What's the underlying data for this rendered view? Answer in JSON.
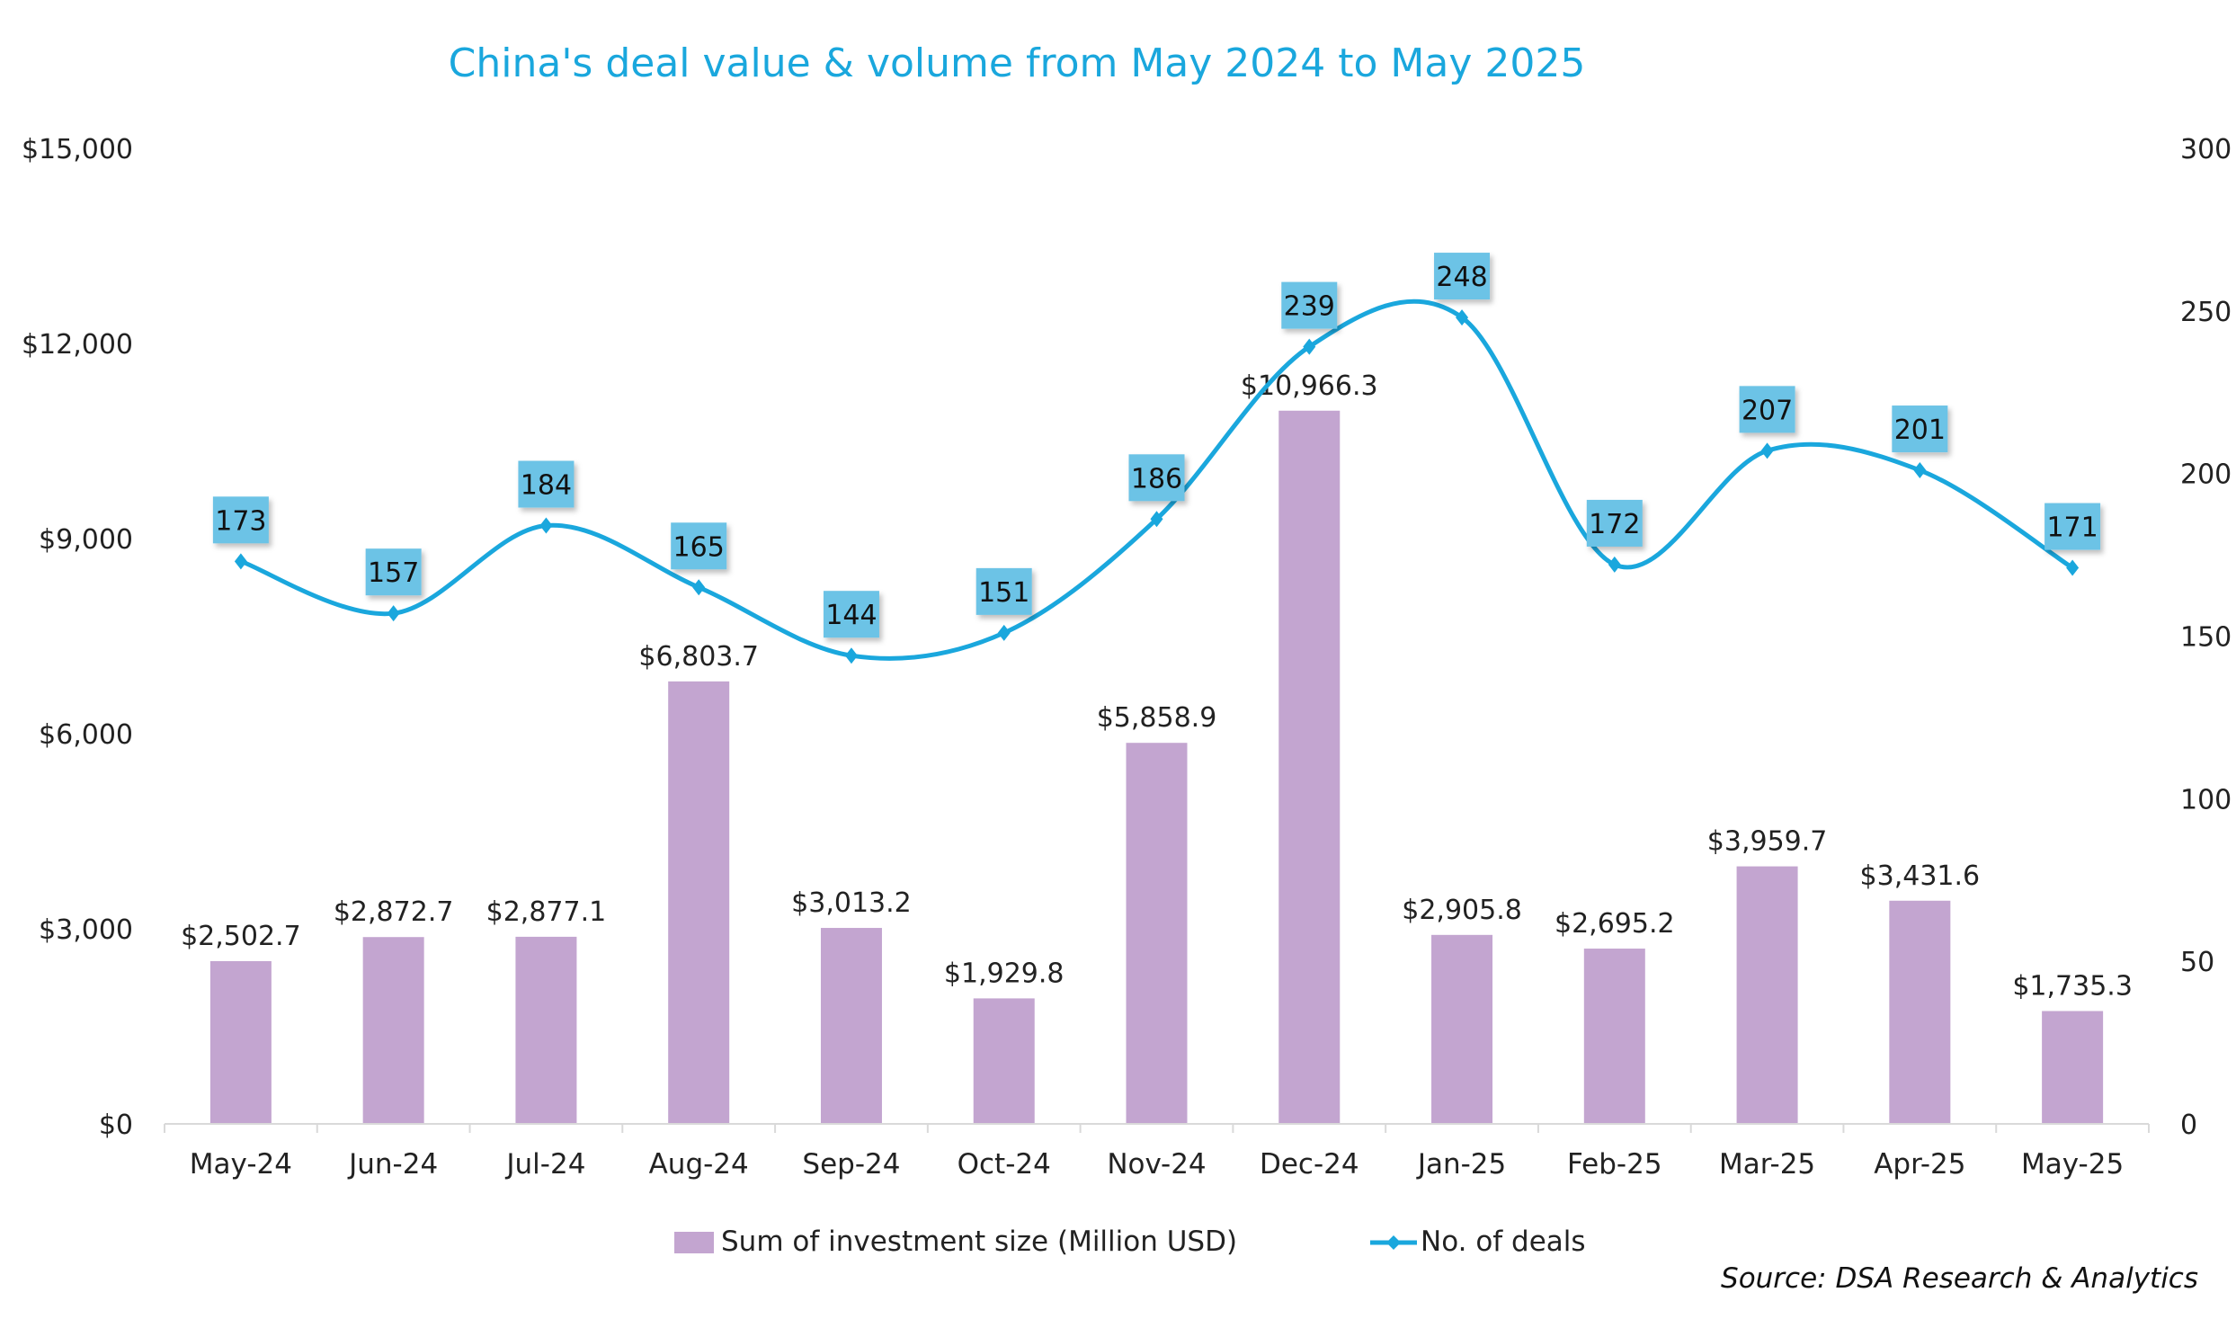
{
  "chart_data": {
    "type": "bar",
    "combo": "bar+line (dual axis)",
    "title": "China's deal value & volume from May 2024 to May 2025",
    "categories": [
      "May-24",
      "Jun-24",
      "Jul-24",
      "Aug-24",
      "Sep-24",
      "Oct-24",
      "Nov-24",
      "Dec-24",
      "Jan-25",
      "Feb-25",
      "Mar-25",
      "Apr-25",
      "May-25"
    ],
    "series": [
      {
        "name": "Sum of investment size (Million USD)",
        "type": "bar",
        "axis": "left",
        "color": "#c3a5d0",
        "values": [
          2502.7,
          2872.7,
          2877.1,
          6803.7,
          3013.2,
          1929.8,
          5858.9,
          10966.3,
          2905.8,
          2695.2,
          3959.7,
          3431.6,
          1735.3
        ],
        "labels": [
          "$2,502.7",
          "$2,872.7",
          "$2,877.1",
          "$6,803.7",
          "$3,013.2",
          "$1,929.8",
          "$5,858.9",
          "$10,966.3",
          "$2,905.8",
          "$2,695.2",
          "$3,959.7",
          "$3,431.6",
          "$1,735.3"
        ]
      },
      {
        "name": "No. of deals",
        "type": "line",
        "smooth": true,
        "marker": "diamond",
        "axis": "right",
        "color": "#1aa7dd",
        "label_box_color": "#6cc3e6",
        "values": [
          173,
          157,
          184,
          165,
          144,
          151,
          186,
          239,
          248,
          172,
          207,
          201,
          171
        ],
        "labels": [
          "173",
          "157",
          "184",
          "165",
          "144",
          "151",
          "186",
          "239",
          "248",
          "172",
          "207",
          "201",
          "171"
        ]
      }
    ],
    "yaxis_left": {
      "range": [
        0,
        15000
      ],
      "ticks": [
        "$0",
        "$3,000",
        "$6,000",
        "$9,000",
        "$12,000",
        "$15,000"
      ],
      "tick_values": [
        0,
        3000,
        6000,
        9000,
        12000,
        15000
      ]
    },
    "yaxis_right": {
      "range": [
        0,
        300
      ],
      "ticks": [
        "0",
        "50",
        "100",
        "150",
        "200",
        "250",
        "300"
      ],
      "tick_values": [
        0,
        50,
        100,
        150,
        200,
        250,
        300
      ]
    },
    "xlabel": "",
    "ylabel": "",
    "grid": false,
    "legend": {
      "placement": "bottom-center",
      "entries": [
        "Sum of investment size (Million USD)",
        "No. of deals"
      ]
    },
    "annotation": "Source: DSA Research & Analytics"
  }
}
